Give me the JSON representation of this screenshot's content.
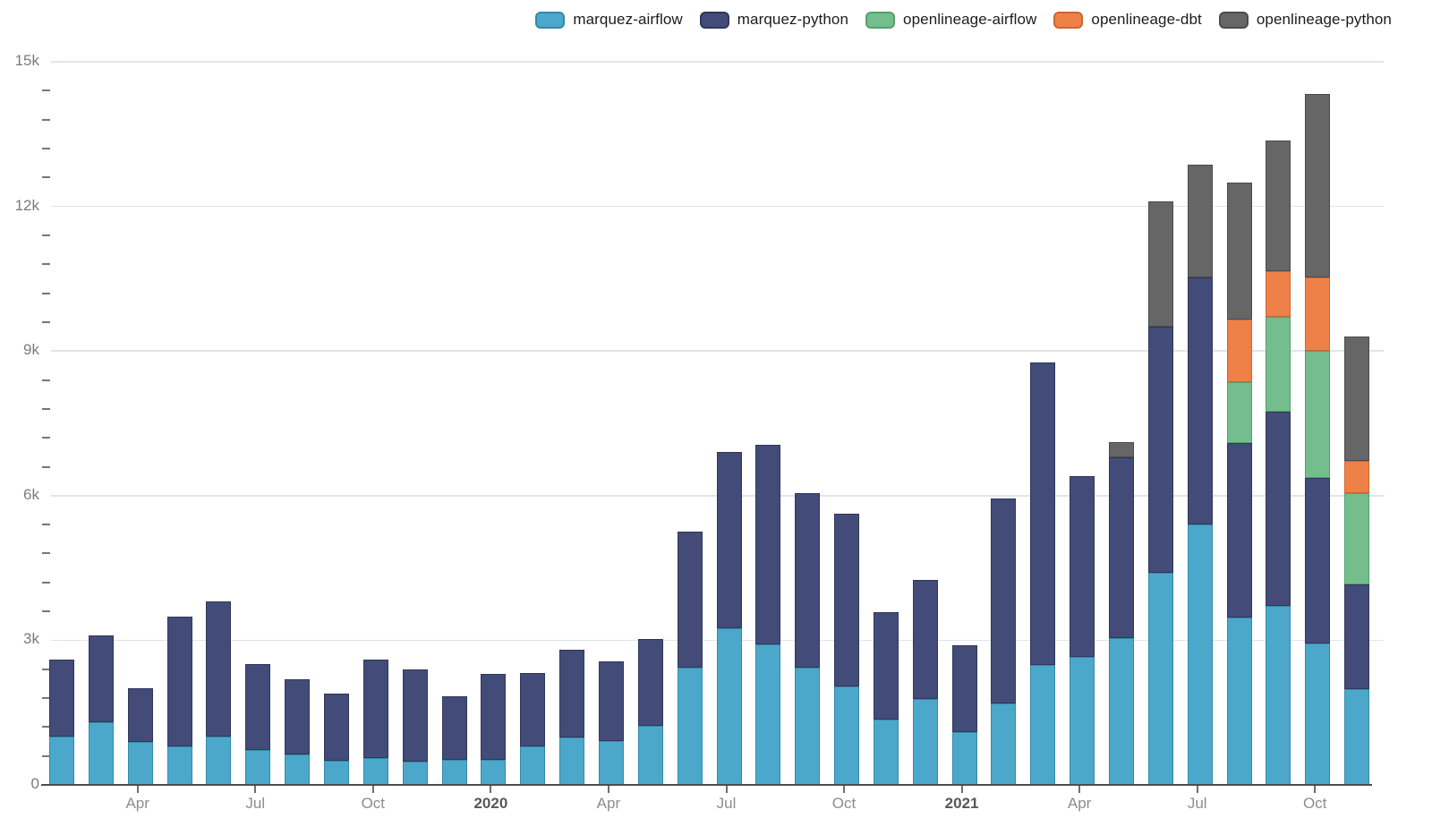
{
  "chart_data": {
    "type": "bar",
    "stacked": true,
    "title": "",
    "xlabel": "",
    "ylabel": "",
    "ylim": [
      0,
      15000
    ],
    "grid": "horizontal-major",
    "legend_position": "top-right",
    "y_axis": {
      "tick_labels": [
        "0",
        "3k",
        "6k",
        "9k",
        "12k",
        "15k"
      ],
      "major_step": 3000,
      "minor_step": 600,
      "max": 15000
    },
    "x_axis": {
      "ticks": [
        {
          "index": 2,
          "label": "Apr",
          "bold": false
        },
        {
          "index": 5,
          "label": "Jul",
          "bold": false
        },
        {
          "index": 8,
          "label": "Oct",
          "bold": false
        },
        {
          "index": 11,
          "label": "2020",
          "bold": true
        },
        {
          "index": 14,
          "label": "Apr",
          "bold": false
        },
        {
          "index": 17,
          "label": "Jul",
          "bold": false
        },
        {
          "index": 20,
          "label": "Oct",
          "bold": false
        },
        {
          "index": 23,
          "label": "2021",
          "bold": true
        },
        {
          "index": 26,
          "label": "Apr",
          "bold": false
        },
        {
          "index": 29,
          "label": "Jul",
          "bold": false
        },
        {
          "index": 32,
          "label": "Oct",
          "bold": false
        }
      ]
    },
    "categories": [
      "Feb 2019",
      "Mar 2019",
      "Apr 2019",
      "May 2019",
      "Jun 2019",
      "Jul 2019",
      "Aug 2019",
      "Sep 2019",
      "Oct 2019",
      "Nov 2019",
      "Dec 2019",
      "Jan 2020",
      "Feb 2020",
      "Mar 2020",
      "Apr 2020",
      "May 2020",
      "Jun 2020",
      "Jul 2020",
      "Aug 2020",
      "Sep 2020",
      "Oct 2020",
      "Nov 2020",
      "Dec 2020",
      "Jan 2021",
      "Feb 2021",
      "Mar 2021",
      "Apr 2021",
      "May 2021",
      "Jun 2021",
      "Jul 2021",
      "Aug 2021",
      "Sep 2021",
      "Oct 2021",
      "Nov 2021"
    ],
    "series": [
      {
        "name": "marquez-airflow",
        "color": "#4BA8CA",
        "border_color": "#3589a9",
        "values": [
          1000,
          1300,
          900,
          800,
          1000,
          730,
          640,
          500,
          550,
          480,
          510,
          520,
          790,
          990,
          900,
          1230,
          2430,
          3250,
          2920,
          2440,
          2050,
          1360,
          1790,
          1090,
          1690,
          2480,
          2660,
          3050,
          4400,
          5400,
          3470,
          3710,
          2930,
          1990
        ]
      },
      {
        "name": "marquez-python",
        "color": "#434C78",
        "border_color": "#30375a",
        "values": [
          1600,
          1800,
          1100,
          2700,
          2800,
          1770,
          1560,
          1400,
          2050,
          1920,
          1330,
          1780,
          1530,
          1820,
          1660,
          1800,
          2820,
          3650,
          4140,
          3610,
          3570,
          2220,
          2470,
          1810,
          4260,
          6290,
          3750,
          3740,
          5100,
          5130,
          3630,
          4030,
          3440,
          2160
        ]
      },
      {
        "name": "openlineage-airflow",
        "color": "#74BD8C",
        "border_color": "#55a070",
        "values": [
          0,
          0,
          0,
          0,
          0,
          0,
          0,
          0,
          0,
          0,
          0,
          0,
          0,
          0,
          0,
          0,
          0,
          0,
          0,
          0,
          0,
          0,
          0,
          0,
          0,
          0,
          0,
          0,
          0,
          0,
          1250,
          1970,
          2630,
          1910
        ]
      },
      {
        "name": "openlineage-dbt",
        "color": "#EE8147",
        "border_color": "#cd6630",
        "values": [
          0,
          0,
          0,
          0,
          0,
          0,
          0,
          0,
          0,
          0,
          0,
          0,
          0,
          0,
          0,
          0,
          0,
          0,
          0,
          0,
          0,
          0,
          0,
          0,
          0,
          0,
          0,
          0,
          0,
          0,
          1310,
          940,
          1530,
          660
        ]
      },
      {
        "name": "openlineage-python",
        "color": "#666666",
        "border_color": "#4b4b4b",
        "values": [
          0,
          0,
          0,
          0,
          0,
          0,
          0,
          0,
          0,
          0,
          0,
          0,
          0,
          0,
          0,
          0,
          0,
          0,
          0,
          0,
          0,
          0,
          0,
          0,
          0,
          0,
          0,
          330,
          2600,
          2340,
          2830,
          2720,
          3810,
          2590
        ]
      }
    ]
  }
}
